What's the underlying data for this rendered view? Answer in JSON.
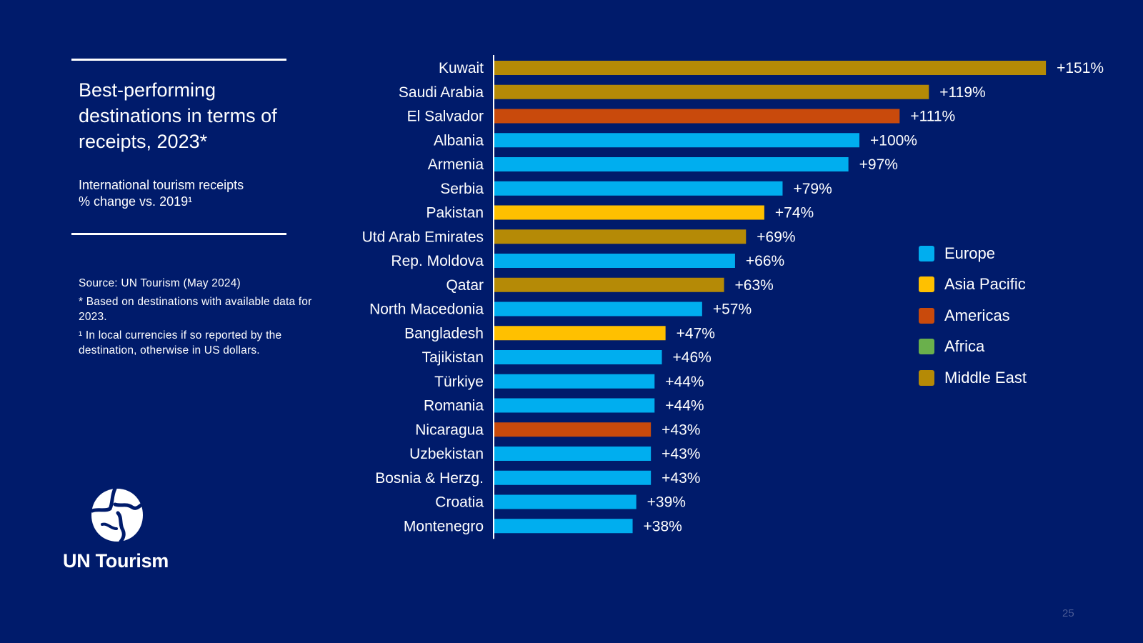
{
  "slide": {
    "title": "Best-performing destinations in terms of receipts, 2023*",
    "subtitle_line1": "International tourism receipts",
    "subtitle_line2": "% change vs. 2019¹",
    "source": "Source: UN Tourism (May 2024)",
    "note1": "* Based on destinations with available data for 2023.",
    "note2": "¹ In local currencies if so reported by the destination, otherwise in US dollars.",
    "logo_text": "UN Tourism",
    "page_number": "25"
  },
  "colors": {
    "background": "#001B6B",
    "Europe": "#00AEEF",
    "Asia Pacific": "#FFC000",
    "Americas": "#C94A0C",
    "Africa": "#6AB04C",
    "Middle East": "#B58A06"
  },
  "chart_data": {
    "type": "bar",
    "orientation": "horizontal",
    "xlim": [
      0,
      160
    ],
    "grid": false,
    "legend_position": "right",
    "categories": [
      "Kuwait",
      "Saudi Arabia",
      "El Salvador",
      "Albania",
      "Armenia",
      "Serbia",
      "Pakistan",
      "Utd Arab Emirates",
      "Rep. Moldova",
      "Qatar",
      "North Macedonia",
      "Bangladesh",
      "Tajikistan",
      "Türkiye",
      "Romania",
      "Nicaragua",
      "Uzbekistan",
      "Bosnia & Herzg.",
      "Croatia",
      "Montenegro"
    ],
    "values": [
      151,
      119,
      111,
      100,
      97,
      79,
      74,
      69,
      66,
      63,
      57,
      47,
      46,
      44,
      44,
      43,
      43,
      43,
      39,
      38
    ],
    "labels": [
      "+151%",
      "+119%",
      "+111%",
      "+100%",
      "+97%",
      "+79%",
      "+74%",
      "+69%",
      "+66%",
      "+63%",
      "+57%",
      "+47%",
      "+46%",
      "+44%",
      "+44%",
      "+43%",
      "+43%",
      "+43%",
      "+39%",
      "+38%"
    ],
    "regions": [
      "Middle East",
      "Middle East",
      "Americas",
      "Europe",
      "Europe",
      "Europe",
      "Asia Pacific",
      "Middle East",
      "Europe",
      "Middle East",
      "Europe",
      "Asia Pacific",
      "Europe",
      "Europe",
      "Europe",
      "Americas",
      "Europe",
      "Europe",
      "Europe",
      "Europe"
    ],
    "legend": [
      "Europe",
      "Asia Pacific",
      "Americas",
      "Africa",
      "Middle East"
    ]
  }
}
